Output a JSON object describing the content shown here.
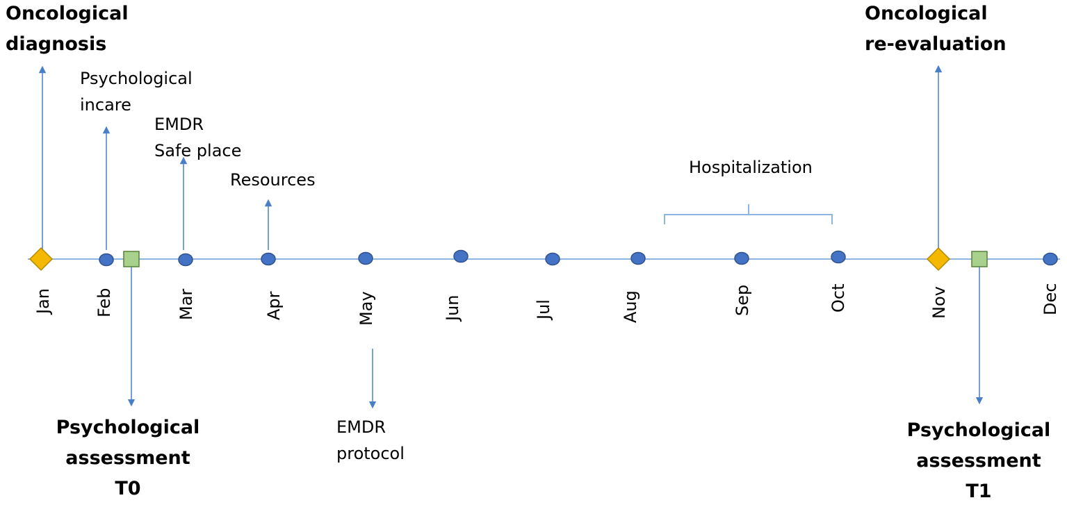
{
  "months": [
    "Jan",
    "Feb",
    "Mar",
    "Apr",
    "May",
    "Jun",
    "Jul",
    "Aug",
    "Sep",
    "Oct",
    "Nov",
    "Dec"
  ],
  "events_above": {
    "oncological_diagnosis": [
      "Oncological",
      "diagnosis"
    ],
    "psychological_incare": [
      "Psychological",
      "incare"
    ],
    "emdr_safe_place": [
      "EMDR",
      "Safe place"
    ],
    "resources": "Resources",
    "hospitalization": "Hospitalization",
    "oncological_reevaluation": [
      "Oncological",
      "re-evaluation"
    ]
  },
  "events_below": {
    "assessment_t0": [
      "Psychological",
      "assessment",
      "T0"
    ],
    "emdr_protocol": [
      "EMDR",
      "protocol"
    ],
    "assessment_t1": [
      "Psychological",
      "assessment",
      "T1"
    ]
  },
  "colors": {
    "line": "#8DB4E2",
    "arrow": "#4A7EC7",
    "circle_fill": "#4472C4",
    "circle_stroke": "#2F528F",
    "diamond_fill": "#F5B800",
    "diamond_stroke": "#B58A00",
    "square_fill": "#A9D18E",
    "square_stroke": "#548235"
  },
  "markers": {
    "diamond": "diamond-marker",
    "circle": "circle-marker",
    "square": "square-marker"
  }
}
